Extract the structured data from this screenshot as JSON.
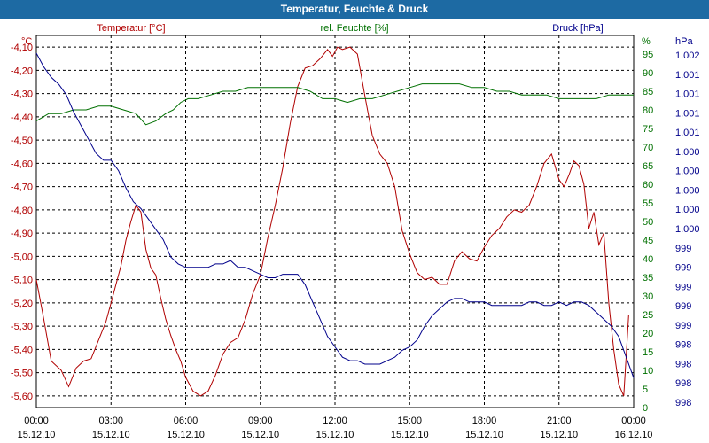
{
  "window": {
    "title": "Temperatur, Feuchte & Druck"
  },
  "colors": {
    "titlebar": "#1d6aa3",
    "temperature": "#b00000",
    "humidity": "#007000",
    "pressure": "#00008b",
    "grid": "#000000"
  },
  "chart_data": {
    "type": "line",
    "title": "Temperatur, Feuchte & Druck",
    "grid": true,
    "x_ticks": [
      {
        "time": "00:00",
        "date": "15.12.10"
      },
      {
        "time": "03:00",
        "date": "15.12.10"
      },
      {
        "time": "06:00",
        "date": "15.12.10"
      },
      {
        "time": "09:00",
        "date": "15.12.10"
      },
      {
        "time": "12:00",
        "date": "15.12.10"
      },
      {
        "time": "15:00",
        "date": "15.12.10"
      },
      {
        "time": "18:00",
        "date": "15.12.10"
      },
      {
        "time": "21:00",
        "date": "15.12.10"
      },
      {
        "time": "00:00",
        "date": "16.12.10"
      }
    ],
    "x_range_hours": [
      0,
      24
    ],
    "axes": {
      "temperature": {
        "label": "Temperatur [°C]",
        "unit": "°C",
        "range": [
          -5.65,
          -4.05
        ],
        "ticks": [
          "-4,10",
          "-4,20",
          "-4,30",
          "-4,40",
          "-4,50",
          "-4,60",
          "-4,70",
          "-4,80",
          "-4,90",
          "-5,00",
          "-5,10",
          "-5,20",
          "-5,30",
          "-5,40",
          "-5,50",
          "-5,60"
        ]
      },
      "humidity": {
        "label": "rel. Feuchte [%]",
        "unit": "%",
        "range": [
          0,
          100
        ],
        "ticks": [
          "95",
          "90",
          "85",
          "80",
          "75",
          "70",
          "65",
          "60",
          "55",
          "50",
          "45",
          "40",
          "35",
          "30",
          "25",
          "20",
          "15",
          "10",
          "5",
          "0"
        ]
      },
      "pressure": {
        "label": "Druck [hPa]",
        "unit": "hPa",
        "ticks": [
          "1.002",
          "1.001",
          "1.001",
          "1.001",
          "1.001",
          "1.000",
          "1.000",
          "1.000",
          "1.000",
          "1.000",
          "999",
          "999",
          "999",
          "999",
          "999",
          "998",
          "998",
          "998",
          "998"
        ]
      }
    },
    "series": [
      {
        "name": "Temperatur [°C]",
        "axis": "temperature",
        "hours": [
          0,
          0.3,
          0.6,
          1.0,
          1.3,
          1.6,
          1.9,
          2.2,
          2.5,
          2.8,
          3.0,
          3.2,
          3.4,
          3.6,
          3.8,
          4.0,
          4.2,
          4.4,
          4.6,
          4.8,
          5.0,
          5.2,
          5.4,
          5.6,
          5.8,
          6.0,
          6.3,
          6.6,
          6.9,
          7.2,
          7.5,
          7.8,
          8.1,
          8.4,
          8.7,
          9.0,
          9.3,
          9.6,
          9.9,
          10.2,
          10.5,
          10.8,
          11.1,
          11.4,
          11.7,
          11.9,
          12.1,
          12.3,
          12.6,
          12.9,
          13.2,
          13.5,
          13.8,
          14.1,
          14.4,
          14.7,
          15.0,
          15.3,
          15.6,
          15.9,
          16.2,
          16.5,
          16.8,
          17.1,
          17.4,
          17.7,
          18.0,
          18.3,
          18.6,
          18.9,
          19.2,
          19.5,
          19.8,
          20.1,
          20.4,
          20.7,
          21.0,
          21.2,
          21.4,
          21.6,
          21.8,
          22.0,
          22.2,
          22.4,
          22.6,
          22.8,
          23.0,
          23.2,
          23.4,
          23.6,
          23.8
        ],
        "values": [
          -5.1,
          -5.27,
          -5.45,
          -5.49,
          -5.56,
          -5.48,
          -5.45,
          -5.44,
          -5.36,
          -5.28,
          -5.2,
          -5.12,
          -5.04,
          -4.93,
          -4.85,
          -4.78,
          -4.81,
          -4.97,
          -5.05,
          -5.08,
          -5.18,
          -5.27,
          -5.34,
          -5.4,
          -5.45,
          -5.52,
          -5.58,
          -5.6,
          -5.58,
          -5.51,
          -5.42,
          -5.37,
          -5.35,
          -5.27,
          -5.16,
          -5.08,
          -4.92,
          -4.78,
          -4.62,
          -4.43,
          -4.27,
          -4.19,
          -4.18,
          -4.15,
          -4.11,
          -4.14,
          -4.1,
          -4.11,
          -4.1,
          -4.13,
          -4.31,
          -4.48,
          -4.56,
          -4.6,
          -4.7,
          -4.89,
          -4.99,
          -5.07,
          -5.1,
          -5.09,
          -5.12,
          -5.12,
          -5.02,
          -4.98,
          -5.01,
          -5.02,
          -4.96,
          -4.91,
          -4.88,
          -4.83,
          -4.8,
          -4.81,
          -4.78,
          -4.7,
          -4.6,
          -4.56,
          -4.67,
          -4.7,
          -4.65,
          -4.59,
          -4.61,
          -4.69,
          -4.88,
          -4.81,
          -4.95,
          -4.9,
          -5.2,
          -5.4,
          -5.55,
          -5.6,
          -5.25
        ]
      },
      {
        "name": "rel. Feuchte [%]",
        "axis": "humidity",
        "hours": [
          0,
          0.5,
          1.0,
          1.5,
          2.0,
          2.5,
          3.0,
          3.5,
          4.0,
          4.4,
          4.8,
          5.2,
          5.5,
          5.8,
          6.1,
          6.5,
          7.0,
          7.5,
          8.0,
          8.5,
          9.0,
          9.5,
          10.0,
          10.5,
          11.0,
          11.5,
          12.0,
          12.5,
          13.0,
          13.5,
          14.0,
          14.5,
          15.0,
          15.5,
          16.0,
          16.5,
          17.0,
          17.5,
          18.0,
          18.5,
          19.0,
          19.5,
          20.0,
          20.5,
          21.0,
          21.5,
          22.0,
          22.5,
          23.0,
          23.5,
          24.0
        ],
        "values": [
          77,
          79,
          79,
          80,
          80,
          81,
          81,
          80,
          79,
          76,
          77,
          79,
          80,
          82,
          83,
          83,
          84,
          85,
          85,
          86,
          86,
          86,
          86,
          86,
          85,
          83,
          83,
          82,
          83,
          83,
          84,
          85,
          86,
          87,
          87,
          87,
          87,
          86,
          86,
          85,
          85,
          84,
          84,
          84,
          83,
          83,
          83,
          83,
          84,
          84,
          84
        ]
      },
      {
        "name": "Druck [hPa]",
        "axis": "pressure",
        "hours": [
          0,
          0.3,
          0.6,
          0.9,
          1.2,
          1.5,
          1.8,
          2.1,
          2.4,
          2.7,
          3.0,
          3.3,
          3.6,
          3.9,
          4.2,
          4.5,
          4.8,
          5.1,
          5.4,
          5.7,
          6.0,
          6.3,
          6.6,
          6.9,
          7.2,
          7.5,
          7.8,
          8.1,
          8.4,
          8.7,
          9.0,
          9.3,
          9.6,
          9.9,
          10.2,
          10.5,
          10.8,
          11.1,
          11.4,
          11.7,
          12.0,
          12.3,
          12.6,
          12.9,
          13.2,
          13.5,
          13.8,
          14.1,
          14.4,
          14.7,
          15.0,
          15.3,
          15.6,
          15.9,
          16.2,
          16.5,
          16.8,
          17.1,
          17.4,
          17.7,
          18.0,
          18.3,
          18.6,
          18.9,
          19.2,
          19.5,
          19.8,
          20.1,
          20.4,
          20.7,
          21.0,
          21.3,
          21.6,
          21.9,
          22.2,
          22.5,
          22.8,
          23.1,
          23.4,
          23.7,
          24.0
        ],
        "y_pixel_scale_note": "",
        "values": [
          100,
          96,
          93,
          91,
          88,
          83,
          79,
          75,
          71,
          69,
          69,
          66,
          61,
          57,
          55,
          52,
          49,
          46,
          41,
          39,
          38,
          38,
          38,
          38,
          39,
          39,
          40,
          38,
          38,
          37,
          36,
          35,
          35,
          36,
          36,
          36,
          33,
          28,
          23,
          18,
          15,
          12,
          11,
          11,
          10,
          10,
          10,
          11,
          12,
          14,
          15,
          17,
          21,
          24,
          26,
          28,
          29,
          29,
          28,
          28,
          28,
          27,
          27,
          27,
          27,
          27,
          28,
          28,
          27,
          27,
          28,
          27,
          28,
          28,
          27,
          25,
          23,
          21,
          18,
          12,
          6
        ]
      }
    ]
  }
}
